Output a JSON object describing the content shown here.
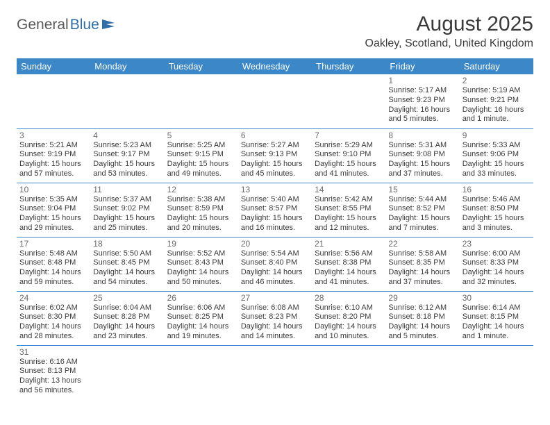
{
  "branding": {
    "logo_general": "General",
    "logo_blue": "Blue"
  },
  "header": {
    "month_title": "August 2025",
    "location": "Oakley, Scotland, United Kingdom"
  },
  "colors": {
    "header_bg": "#3b87c8",
    "header_text": "#ffffff",
    "row_border": "#3b87c8",
    "day_num": "#6a6a6a",
    "body_text": "#3a3a3a",
    "logo_gray": "#5a5a5a",
    "logo_blue": "#2f6da8"
  },
  "weekdays": [
    "Sunday",
    "Monday",
    "Tuesday",
    "Wednesday",
    "Thursday",
    "Friday",
    "Saturday"
  ],
  "weeks": [
    [
      null,
      null,
      null,
      null,
      null,
      {
        "n": "1",
        "sunrise": "Sunrise: 5:17 AM",
        "sunset": "Sunset: 9:23 PM",
        "day1": "Daylight: 16 hours",
        "day2": "and 5 minutes."
      },
      {
        "n": "2",
        "sunrise": "Sunrise: 5:19 AM",
        "sunset": "Sunset: 9:21 PM",
        "day1": "Daylight: 16 hours",
        "day2": "and 1 minute."
      }
    ],
    [
      {
        "n": "3",
        "sunrise": "Sunrise: 5:21 AM",
        "sunset": "Sunset: 9:19 PM",
        "day1": "Daylight: 15 hours",
        "day2": "and 57 minutes."
      },
      {
        "n": "4",
        "sunrise": "Sunrise: 5:23 AM",
        "sunset": "Sunset: 9:17 PM",
        "day1": "Daylight: 15 hours",
        "day2": "and 53 minutes."
      },
      {
        "n": "5",
        "sunrise": "Sunrise: 5:25 AM",
        "sunset": "Sunset: 9:15 PM",
        "day1": "Daylight: 15 hours",
        "day2": "and 49 minutes."
      },
      {
        "n": "6",
        "sunrise": "Sunrise: 5:27 AM",
        "sunset": "Sunset: 9:13 PM",
        "day1": "Daylight: 15 hours",
        "day2": "and 45 minutes."
      },
      {
        "n": "7",
        "sunrise": "Sunrise: 5:29 AM",
        "sunset": "Sunset: 9:10 PM",
        "day1": "Daylight: 15 hours",
        "day2": "and 41 minutes."
      },
      {
        "n": "8",
        "sunrise": "Sunrise: 5:31 AM",
        "sunset": "Sunset: 9:08 PM",
        "day1": "Daylight: 15 hours",
        "day2": "and 37 minutes."
      },
      {
        "n": "9",
        "sunrise": "Sunrise: 5:33 AM",
        "sunset": "Sunset: 9:06 PM",
        "day1": "Daylight: 15 hours",
        "day2": "and 33 minutes."
      }
    ],
    [
      {
        "n": "10",
        "sunrise": "Sunrise: 5:35 AM",
        "sunset": "Sunset: 9:04 PM",
        "day1": "Daylight: 15 hours",
        "day2": "and 29 minutes."
      },
      {
        "n": "11",
        "sunrise": "Sunrise: 5:37 AM",
        "sunset": "Sunset: 9:02 PM",
        "day1": "Daylight: 15 hours",
        "day2": "and 25 minutes."
      },
      {
        "n": "12",
        "sunrise": "Sunrise: 5:38 AM",
        "sunset": "Sunset: 8:59 PM",
        "day1": "Daylight: 15 hours",
        "day2": "and 20 minutes."
      },
      {
        "n": "13",
        "sunrise": "Sunrise: 5:40 AM",
        "sunset": "Sunset: 8:57 PM",
        "day1": "Daylight: 15 hours",
        "day2": "and 16 minutes."
      },
      {
        "n": "14",
        "sunrise": "Sunrise: 5:42 AM",
        "sunset": "Sunset: 8:55 PM",
        "day1": "Daylight: 15 hours",
        "day2": "and 12 minutes."
      },
      {
        "n": "15",
        "sunrise": "Sunrise: 5:44 AM",
        "sunset": "Sunset: 8:52 PM",
        "day1": "Daylight: 15 hours",
        "day2": "and 7 minutes."
      },
      {
        "n": "16",
        "sunrise": "Sunrise: 5:46 AM",
        "sunset": "Sunset: 8:50 PM",
        "day1": "Daylight: 15 hours",
        "day2": "and 3 minutes."
      }
    ],
    [
      {
        "n": "17",
        "sunrise": "Sunrise: 5:48 AM",
        "sunset": "Sunset: 8:48 PM",
        "day1": "Daylight: 14 hours",
        "day2": "and 59 minutes."
      },
      {
        "n": "18",
        "sunrise": "Sunrise: 5:50 AM",
        "sunset": "Sunset: 8:45 PM",
        "day1": "Daylight: 14 hours",
        "day2": "and 54 minutes."
      },
      {
        "n": "19",
        "sunrise": "Sunrise: 5:52 AM",
        "sunset": "Sunset: 8:43 PM",
        "day1": "Daylight: 14 hours",
        "day2": "and 50 minutes."
      },
      {
        "n": "20",
        "sunrise": "Sunrise: 5:54 AM",
        "sunset": "Sunset: 8:40 PM",
        "day1": "Daylight: 14 hours",
        "day2": "and 46 minutes."
      },
      {
        "n": "21",
        "sunrise": "Sunrise: 5:56 AM",
        "sunset": "Sunset: 8:38 PM",
        "day1": "Daylight: 14 hours",
        "day2": "and 41 minutes."
      },
      {
        "n": "22",
        "sunrise": "Sunrise: 5:58 AM",
        "sunset": "Sunset: 8:35 PM",
        "day1": "Daylight: 14 hours",
        "day2": "and 37 minutes."
      },
      {
        "n": "23",
        "sunrise": "Sunrise: 6:00 AM",
        "sunset": "Sunset: 8:33 PM",
        "day1": "Daylight: 14 hours",
        "day2": "and 32 minutes."
      }
    ],
    [
      {
        "n": "24",
        "sunrise": "Sunrise: 6:02 AM",
        "sunset": "Sunset: 8:30 PM",
        "day1": "Daylight: 14 hours",
        "day2": "and 28 minutes."
      },
      {
        "n": "25",
        "sunrise": "Sunrise: 6:04 AM",
        "sunset": "Sunset: 8:28 PM",
        "day1": "Daylight: 14 hours",
        "day2": "and 23 minutes."
      },
      {
        "n": "26",
        "sunrise": "Sunrise: 6:06 AM",
        "sunset": "Sunset: 8:25 PM",
        "day1": "Daylight: 14 hours",
        "day2": "and 19 minutes."
      },
      {
        "n": "27",
        "sunrise": "Sunrise: 6:08 AM",
        "sunset": "Sunset: 8:23 PM",
        "day1": "Daylight: 14 hours",
        "day2": "and 14 minutes."
      },
      {
        "n": "28",
        "sunrise": "Sunrise: 6:10 AM",
        "sunset": "Sunset: 8:20 PM",
        "day1": "Daylight: 14 hours",
        "day2": "and 10 minutes."
      },
      {
        "n": "29",
        "sunrise": "Sunrise: 6:12 AM",
        "sunset": "Sunset: 8:18 PM",
        "day1": "Daylight: 14 hours",
        "day2": "and 5 minutes."
      },
      {
        "n": "30",
        "sunrise": "Sunrise: 6:14 AM",
        "sunset": "Sunset: 8:15 PM",
        "day1": "Daylight: 14 hours",
        "day2": "and 1 minute."
      }
    ],
    [
      {
        "n": "31",
        "sunrise": "Sunrise: 6:16 AM",
        "sunset": "Sunset: 8:13 PM",
        "day1": "Daylight: 13 hours",
        "day2": "and 56 minutes."
      },
      null,
      null,
      null,
      null,
      null,
      null
    ]
  ]
}
